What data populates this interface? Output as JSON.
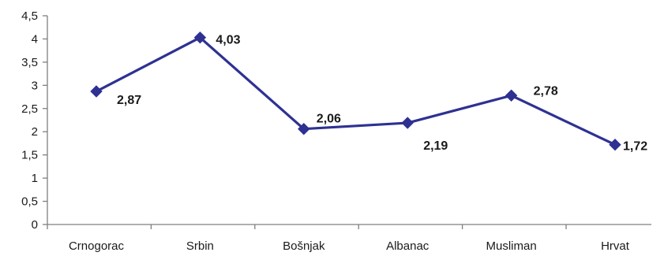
{
  "chart_data": {
    "type": "line",
    "categories": [
      "Crnogorac",
      "Srbin",
      "Bošnjak",
      "Albanac",
      "Musliman",
      "Hrvat"
    ],
    "series": [
      {
        "values": [
          2.87,
          4.03,
          2.06,
          2.19,
          2.78,
          1.72
        ],
        "value_labels": [
          "2,87",
          "4,03",
          "2,06",
          "2,19",
          "2,78",
          "1,72"
        ]
      }
    ],
    "y_ticks": [
      "0",
      "0,5",
      "1",
      "1,5",
      "2",
      "2,5",
      "3",
      "3,5",
      "4",
      "4,5"
    ],
    "ylim": [
      0,
      4.5
    ],
    "title": "",
    "xlabel": "",
    "ylabel": "",
    "grid": false,
    "legend": "none",
    "line_color": "#2e3192",
    "marker": "diamond"
  }
}
